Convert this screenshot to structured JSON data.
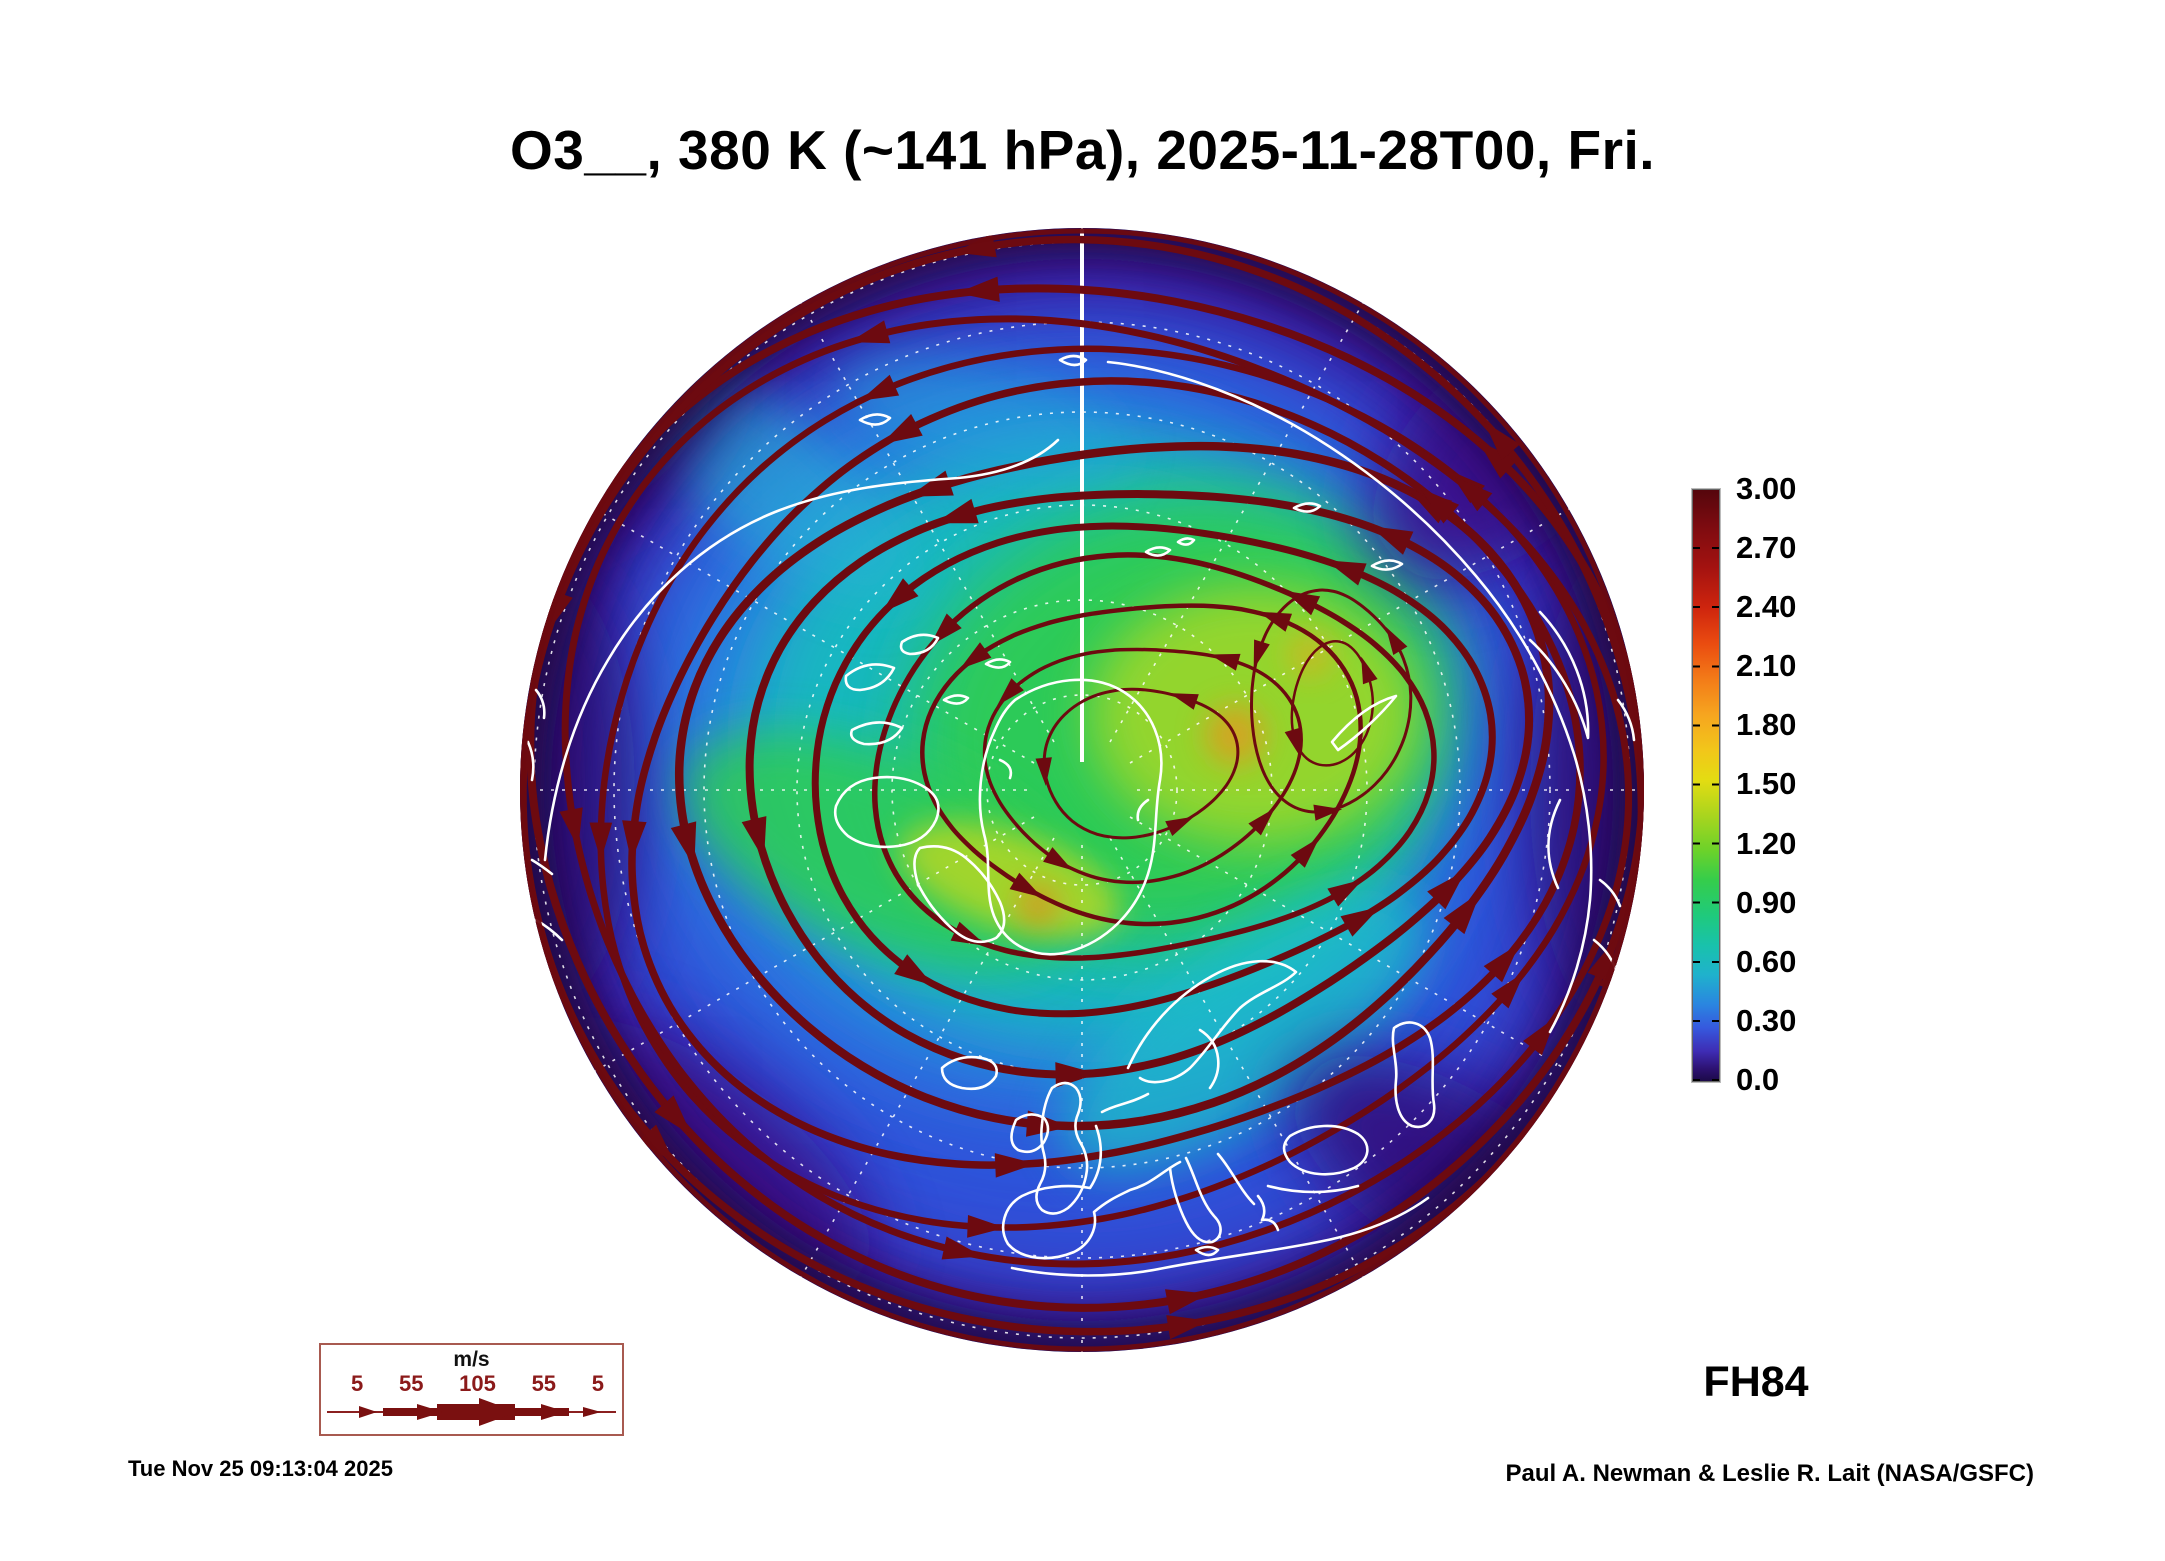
{
  "title": "O3__, 380 K (~141 hPa), 2025-11-28T00, Fri.",
  "colorbar": {
    "ticks": [
      "3.00",
      "2.70",
      "2.40",
      "2.10",
      "1.80",
      "1.50",
      "1.20",
      "0.90",
      "0.60",
      "0.30",
      "0.0"
    ],
    "top_color": "#55060c",
    "bottom_color": "#1c0a48"
  },
  "wind_legend": {
    "units": "m/s",
    "values": [
      "5",
      "55",
      "105",
      "55",
      "5"
    ]
  },
  "forecast_label": "FH84",
  "footer": {
    "timestamp": "Tue Nov 25 09:13:04 2025",
    "credit": "Paul A. Newman & Leslie R. Lait (NASA/GSFC)"
  },
  "map": {
    "projection": "north-polar-stereographic",
    "colors": {
      "streamline": "#6d0a10",
      "coastline": "#ffffff",
      "field_low_purple": "#2c0a5e",
      "field_blue": "#2f55dd",
      "field_teal": "#19bdbd",
      "field_green": "#2ecc52",
      "field_yellow": "#a8d828",
      "field_orange": "#e8951f"
    },
    "streamlines": {
      "loops": [
        [
          1332,
          705,
          40,
          62,
          12,
          2.5,
          0.04,
          0,
          0.03,
          1,
          2
        ],
        [
          1328,
          702,
          78,
          112,
          10,
          3,
          0.05,
          0.5,
          0.04,
          2,
          3
        ],
        [
          1138,
          762,
          96,
          74,
          -18,
          3,
          0.05,
          0,
          0.04,
          1.2,
          3
        ],
        [
          1142,
          760,
          152,
          120,
          -15,
          3.5,
          0.06,
          0.4,
          0.05,
          2.2,
          4
        ],
        [
          1146,
          758,
          208,
          166,
          -12,
          4.5,
          0.06,
          0.8,
          0.05,
          3,
          4
        ],
        [
          1144,
          760,
          262,
          212,
          -10,
          5.5,
          0.07,
          1.2,
          0.05,
          0.5,
          4
        ],
        [
          1138,
          764,
          318,
          256,
          -8,
          7,
          0.07,
          1.6,
          0.05,
          1.4,
          4
        ],
        [
          1126,
          770,
          370,
          302,
          -6,
          8,
          0.06,
          2,
          0.05,
          2.2,
          5
        ],
        [
          1112,
          774,
          420,
          346,
          -5,
          8.5,
          0.05,
          2.4,
          0.04,
          3,
          5
        ],
        [
          1098,
          780,
          464,
          392,
          -3,
          7.5,
          0.05,
          2.8,
          0.04,
          0.6,
          5
        ],
        [
          1088,
          786,
          502,
          434,
          -2,
          6.5,
          0.04,
          3.2,
          0.03,
          1.4,
          5
        ],
        [
          1084,
          788,
          530,
          470,
          0,
          7,
          0.03,
          0,
          0.03,
          2,
          5
        ],
        [
          1082,
          790,
          550,
          514,
          0,
          8,
          0.02,
          0.5,
          0.02,
          2.6,
          6
        ],
        [
          1082,
          790,
          559,
          546,
          0,
          7.5,
          0.008,
          0,
          0.008,
          0,
          6
        ]
      ]
    }
  }
}
